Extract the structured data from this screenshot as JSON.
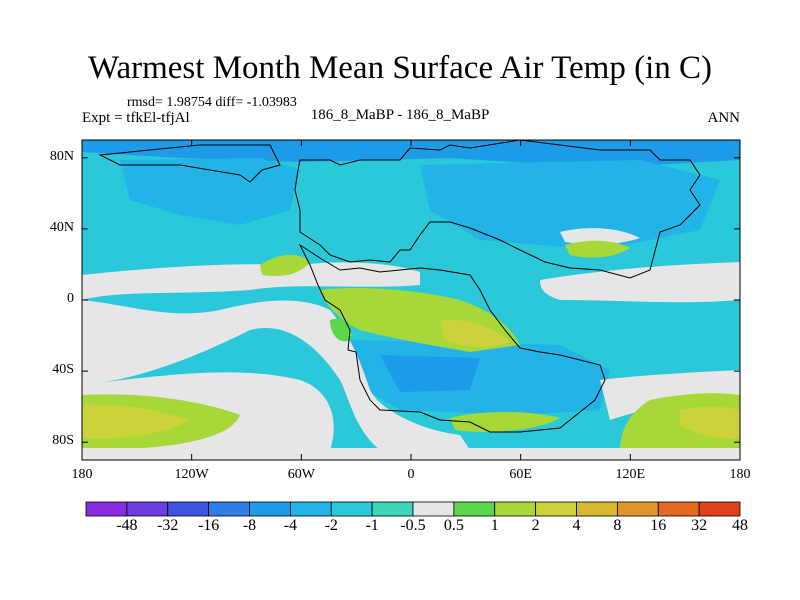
{
  "title": "Warmest Month Mean Surface Air Temp (in C)",
  "stats": "rmsd= 1.98754 diff= -1.03983",
  "left_label": "Expt = tfkEl-tfjAl",
  "center_label": "186_8_MaBP - 186_8_MaBP",
  "right_label": "ANN",
  "lat_ticks": [
    {
      "label": "80N",
      "lat": 80
    },
    {
      "label": "40N",
      "lat": 40
    },
    {
      "label": "0",
      "lat": 0
    },
    {
      "label": "40S",
      "lat": -40
    },
    {
      "label": "80S",
      "lat": -80
    }
  ],
  "lon_ticks": [
    {
      "label": "180",
      "lon": -180
    },
    {
      "label": "120W",
      "lon": -120
    },
    {
      "label": "60W",
      "lon": -60
    },
    {
      "label": "0",
      "lon": 0
    },
    {
      "label": "60E",
      "lon": 60
    },
    {
      "label": "120E",
      "lon": 120
    },
    {
      "label": "180",
      "lon": 180
    }
  ],
  "colorbar": {
    "colors": [
      "#8a2be2",
      "#6a3ee0",
      "#3d55e0",
      "#2e7de6",
      "#1e9be8",
      "#22b4e6",
      "#2ac8d8",
      "#3cd6b8",
      "#e6e6e6",
      "#5ad84a",
      "#a6d83a",
      "#ccd23a",
      "#d8b830",
      "#e0962a",
      "#e46a22",
      "#e2401a"
    ],
    "labels": [
      "-48",
      "-32",
      "-16",
      "-8",
      "-4",
      "-2",
      "-1",
      "-0.5",
      "0.5",
      "1",
      "2",
      "4",
      "8",
      "16",
      "32",
      "48"
    ]
  },
  "colors": {
    "background": "#2ac8d8",
    "zero": "#e6e6e6",
    "cool": "#22b4e6",
    "cooler": "#1e9be8",
    "teal": "#3cd6b8",
    "warm1": "#5ad84a",
    "warm2": "#a6d83a",
    "warm3": "#ccd23a",
    "warm4": "#d8b830"
  }
}
